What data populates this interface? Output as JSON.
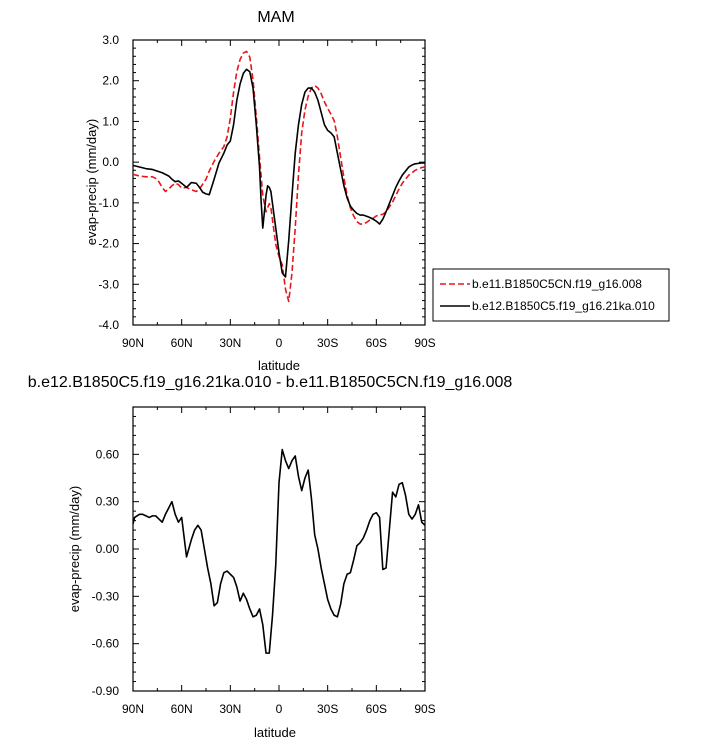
{
  "chart_data": [
    {
      "type": "line",
      "title": "MAM",
      "xlabel": "latitude",
      "ylabel": "evap-precip (mm/day)",
      "xlim": [
        90,
        -90
      ],
      "ylim": [
        -4.0,
        3.0
      ],
      "x_tick_values": [
        90,
        60,
        30,
        0,
        -30,
        -60,
        -90
      ],
      "x_tick_labels": [
        "90N",
        "60N",
        "30N",
        "0",
        "30S",
        "60S",
        "90S"
      ],
      "y_tick_values": [
        3.0,
        2.0,
        1.0,
        0.0,
        -1.0,
        -2.0,
        -3.0,
        -4.0
      ],
      "y_tick_labels": [
        "3.0",
        "2.0",
        "1.0",
        "0.0",
        "-1.0",
        "-2.0",
        "-3.0",
        "-4.0"
      ],
      "legend_position": "right",
      "grid": false,
      "series": [
        {
          "name": "b.e11.B1850C5CN.f19_g16.008",
          "color": "#e8161b",
          "dash": "dashed",
          "x": [
            90,
            86,
            82,
            78,
            75,
            72,
            70,
            68,
            66,
            64,
            62,
            60,
            57,
            54,
            51,
            49,
            47,
            45,
            43,
            40,
            37,
            34,
            32,
            30,
            28,
            26,
            24,
            22,
            20,
            18,
            16,
            14,
            12,
            10,
            8,
            6,
            5,
            4,
            2,
            0,
            -2,
            -4,
            -6,
            -8,
            -10,
            -12,
            -14,
            -16,
            -18,
            -20,
            -22,
            -24,
            -26,
            -28,
            -30,
            -32,
            -34,
            -36,
            -38,
            -40,
            -42,
            -44,
            -46,
            -48,
            -50,
            -52,
            -54,
            -56,
            -58,
            -60,
            -62,
            -64,
            -66,
            -68,
            -70,
            -72,
            -74,
            -76,
            -78,
            -80,
            -82,
            -84,
            -86,
            -88,
            -90
          ],
          "y": [
            -0.3,
            -0.34,
            -0.36,
            -0.36,
            -0.42,
            -0.62,
            -0.72,
            -0.66,
            -0.58,
            -0.52,
            -0.55,
            -0.64,
            -0.62,
            -0.68,
            -0.72,
            -0.66,
            -0.54,
            -0.42,
            -0.22,
            0.02,
            0.22,
            0.38,
            0.62,
            1.08,
            1.72,
            2.22,
            2.52,
            2.68,
            2.72,
            2.58,
            2.02,
            1.12,
            0.12,
            -0.82,
            -1.22,
            -1.02,
            -1.12,
            -1.42,
            -2.02,
            -2.32,
            -2.52,
            -3.12,
            -3.42,
            -2.72,
            -1.62,
            -0.32,
            0.72,
            1.28,
            1.62,
            1.82,
            1.88,
            1.82,
            1.68,
            1.48,
            1.32,
            1.18,
            1.02,
            0.62,
            0.12,
            -0.38,
            -0.82,
            -1.12,
            -1.32,
            -1.46,
            -1.52,
            -1.52,
            -1.48,
            -1.42,
            -1.38,
            -1.32,
            -1.3,
            -1.28,
            -1.22,
            -1.1,
            -0.98,
            -0.82,
            -0.66,
            -0.52,
            -0.42,
            -0.32,
            -0.26,
            -0.2,
            -0.16,
            -0.13,
            -0.12
          ]
        },
        {
          "name": "b.e12.B1850C5.f19_g16.21ka.010",
          "color": "#000000",
          "dash": "solid",
          "x": [
            90,
            86,
            82,
            78,
            75,
            72,
            70,
            68,
            66,
            64,
            62,
            60,
            57,
            54,
            51,
            49,
            47,
            45,
            43,
            40,
            37,
            34,
            32,
            30,
            28,
            26,
            24,
            22,
            20,
            18,
            16,
            14,
            12,
            11,
            10,
            9,
            8,
            7,
            6,
            5,
            4,
            2,
            0,
            -2,
            -4,
            -6,
            -8,
            -10,
            -12,
            -14,
            -16,
            -18,
            -20,
            -22,
            -24,
            -26,
            -28,
            -30,
            -32,
            -34,
            -36,
            -38,
            -40,
            -42,
            -44,
            -46,
            -48,
            -50,
            -52,
            -54,
            -56,
            -58,
            -60,
            -62,
            -64,
            -66,
            -68,
            -70,
            -72,
            -74,
            -76,
            -78,
            -80,
            -82,
            -84,
            -86,
            -88,
            -90
          ],
          "y": [
            -0.08,
            -0.12,
            -0.16,
            -0.18,
            -0.22,
            -0.26,
            -0.3,
            -0.34,
            -0.42,
            -0.48,
            -0.46,
            -0.52,
            -0.62,
            -0.5,
            -0.52,
            -0.62,
            -0.74,
            -0.78,
            -0.8,
            -0.42,
            -0.02,
            0.22,
            0.42,
            0.52,
            0.92,
            1.52,
            1.92,
            2.18,
            2.28,
            2.22,
            1.82,
            0.92,
            -0.12,
            -0.98,
            -1.62,
            -1.22,
            -0.82,
            -0.58,
            -0.62,
            -0.72,
            -1.02,
            -1.62,
            -2.22,
            -2.72,
            -2.82,
            -1.92,
            -0.82,
            0.22,
            0.92,
            1.42,
            1.72,
            1.82,
            1.82,
            1.72,
            1.52,
            1.22,
            0.92,
            0.78,
            0.72,
            0.62,
            0.22,
            -0.18,
            -0.58,
            -0.88,
            -1.08,
            -1.18,
            -1.26,
            -1.3,
            -1.3,
            -1.33,
            -1.36,
            -1.4,
            -1.45,
            -1.52,
            -1.4,
            -1.22,
            -1.02,
            -0.82,
            -0.62,
            -0.46,
            -0.32,
            -0.22,
            -0.12,
            -0.07,
            -0.04,
            -0.03,
            -0.02,
            -0.02
          ]
        }
      ]
    },
    {
      "type": "line",
      "title": "b.e12.B1850C5.f19_g16.21ka.010 - b.e11.B1850C5CN.f19_g16.008",
      "xlabel": "latitude",
      "ylabel": "evap-precip (mm/day)",
      "xlim": [
        90,
        -90
      ],
      "ylim": [
        -0.9,
        0.9
      ],
      "x_tick_values": [
        90,
        60,
        30,
        0,
        -30,
        -60,
        -90
      ],
      "x_tick_labels": [
        "90N",
        "60N",
        "30N",
        "0",
        "30S",
        "60S",
        "90S"
      ],
      "y_tick_values": [
        0.6,
        0.3,
        0.0,
        -0.3,
        -0.6,
        -0.9
      ],
      "y_tick_labels": [
        "0.60",
        "0.30",
        "0.00",
        "-0.30",
        "-0.60",
        "-0.90"
      ],
      "grid": false,
      "series": [
        {
          "color": "#000000",
          "dash": "solid",
          "x": [
            90,
            89,
            86,
            84,
            82,
            80,
            78,
            76,
            74,
            72,
            70,
            68,
            66,
            64,
            62,
            60,
            57,
            54,
            52,
            50,
            48,
            46,
            44,
            42,
            40,
            38,
            36,
            34,
            32,
            30,
            28,
            26,
            24,
            22,
            20,
            18,
            16,
            14,
            12,
            10,
            8,
            6,
            4,
            2,
            0,
            -2,
            -4,
            -6,
            -8,
            -10,
            -12,
            -14,
            -16,
            -18,
            -20,
            -22,
            -24,
            -26,
            -28,
            -30,
            -32,
            -34,
            -36,
            -38,
            -40,
            -42,
            -44,
            -46,
            -48,
            -50,
            -52,
            -54,
            -56,
            -58,
            -60,
            -62,
            -64,
            -66,
            -68,
            -70,
            -72,
            -74,
            -76,
            -78,
            -80,
            -82,
            -84,
            -86,
            -88,
            -90
          ],
          "y": [
            0.16,
            0.2,
            0.22,
            0.22,
            0.21,
            0.2,
            0.21,
            0.21,
            0.19,
            0.17,
            0.22,
            0.26,
            0.3,
            0.22,
            0.17,
            0.2,
            -0.05,
            0.06,
            0.12,
            0.15,
            0.12,
            0.0,
            -0.12,
            -0.22,
            -0.36,
            -0.34,
            -0.22,
            -0.15,
            -0.14,
            -0.16,
            -0.18,
            -0.24,
            -0.33,
            -0.28,
            -0.32,
            -0.38,
            -0.43,
            -0.42,
            -0.38,
            -0.48,
            -0.66,
            -0.66,
            -0.42,
            -0.1,
            0.42,
            0.63,
            0.56,
            0.51,
            0.56,
            0.59,
            0.46,
            0.37,
            0.45,
            0.5,
            0.32,
            0.09,
            0.0,
            -0.12,
            -0.22,
            -0.32,
            -0.38,
            -0.42,
            -0.43,
            -0.35,
            -0.22,
            -0.16,
            -0.15,
            -0.07,
            0.02,
            0.04,
            0.07,
            0.12,
            0.18,
            0.22,
            0.23,
            0.2,
            -0.13,
            -0.12,
            0.12,
            0.36,
            0.33,
            0.41,
            0.42,
            0.34,
            0.22,
            0.19,
            0.22,
            0.28,
            0.17,
            0.15
          ]
        }
      ]
    }
  ]
}
